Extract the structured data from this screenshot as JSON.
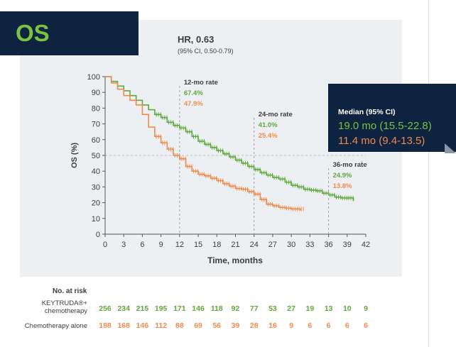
{
  "badge": "OS",
  "hr": {
    "title": "HR, 0.63",
    "ci": "(95% CI, 0.50-0.79)"
  },
  "median": {
    "label": "Median (95% CI)",
    "keytruda": "19.0 mo (15.5-22.8)",
    "chemo": "11.4 mo (9.4-13.5)"
  },
  "colors": {
    "keytruda": "#5fa83d",
    "chemo": "#f08a4b",
    "navy": "#0d2340",
    "panel": "#edf0f3"
  },
  "annotations": [
    {
      "month": 12,
      "title": "12-mo rate",
      "keytruda": "67.4%",
      "chemo": "47.9%"
    },
    {
      "month": 24,
      "title": "24-mo rate",
      "keytruda": "41.0%",
      "chemo": "25.4%"
    },
    {
      "month": 36,
      "title": "36-mo rate",
      "keytruda": "24.9%",
      "chemo": "13.8%"
    }
  ],
  "risk_table": {
    "title": "No. at risk",
    "rows": [
      {
        "name_lines": [
          "KEYTRUDA®+",
          "chemotherapy"
        ],
        "values": [
          "256",
          "234",
          "215",
          "195",
          "171",
          "146",
          "118",
          "92",
          "77",
          "53",
          "27",
          "19",
          "13",
          "10",
          "9"
        ]
      },
      {
        "name_lines": [
          "Chemotherapy alone"
        ],
        "values": [
          "188",
          "168",
          "146",
          "112",
          "88",
          "69",
          "56",
          "39",
          "28",
          "16",
          "9",
          "6",
          "6",
          "6",
          "6"
        ]
      }
    ]
  },
  "chart_data": {
    "type": "line",
    "xlabel": "Time, months",
    "ylabel": "OS (%)",
    "xlim": [
      0,
      42
    ],
    "ylim": [
      0,
      100
    ],
    "xticks": [
      0,
      3,
      6,
      9,
      12,
      15,
      18,
      21,
      24,
      27,
      30,
      33,
      36,
      39,
      42
    ],
    "yticks": [
      0,
      10,
      20,
      30,
      40,
      50,
      60,
      70,
      80,
      90,
      100
    ],
    "reference_line_y": 50,
    "series": [
      {
        "name": "KEYTRUDA®+ chemotherapy",
        "color": "#5fa83d",
        "x": [
          0,
          1,
          2,
          3,
          4,
          5,
          6,
          7,
          8,
          9,
          10,
          11,
          12,
          13,
          14,
          15,
          16,
          17,
          18,
          19,
          20,
          21,
          22,
          23,
          24,
          25,
          26,
          27,
          28,
          29,
          30,
          31,
          32,
          33,
          34,
          35,
          36,
          37,
          38,
          39,
          40
        ],
        "y": [
          100,
          97,
          94,
          91,
          88,
          85,
          82,
          79,
          76,
          74,
          71,
          69,
          67.4,
          65,
          62,
          59,
          57,
          55,
          53,
          51,
          49,
          47,
          45,
          43,
          41,
          39,
          37.5,
          36,
          35,
          33,
          31,
          30,
          28.5,
          28,
          27.5,
          26,
          24.9,
          23.5,
          23,
          23,
          21
        ]
      },
      {
        "name": "Chemotherapy alone",
        "color": "#f08a4b",
        "x": [
          0,
          1,
          2,
          3,
          4,
          5,
          6,
          7,
          8,
          9,
          10,
          11,
          12,
          13,
          14,
          15,
          16,
          17,
          18,
          19,
          20,
          21,
          22,
          23,
          24,
          25,
          26,
          27,
          28,
          29,
          30,
          31,
          31.5
        ],
        "y": [
          100,
          96,
          92,
          88,
          85,
          82,
          76,
          68,
          62,
          58,
          54,
          50,
          47.9,
          43,
          40,
          38,
          37,
          35.5,
          34,
          32,
          30.5,
          29,
          28.5,
          27,
          25.4,
          22,
          19,
          18,
          17,
          16.5,
          16,
          16,
          15
        ]
      }
    ]
  }
}
